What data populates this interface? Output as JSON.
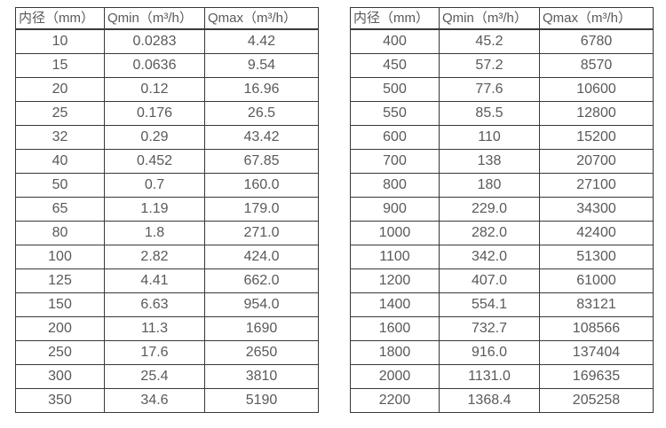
{
  "colors": {
    "background": "#ffffff",
    "border": "#383838",
    "text": "#595959"
  },
  "tables": [
    {
      "name": "flow-table-small-diameters",
      "headers": [
        "内径（mm）",
        "Qmin（m³/h）",
        "Qmax（m³/h）"
      ],
      "rows": [
        [
          "10",
          "0.0283",
          "4.42"
        ],
        [
          "15",
          "0.0636",
          "9.54"
        ],
        [
          "20",
          "0.12",
          "16.96"
        ],
        [
          "25",
          "0.176",
          "26.5"
        ],
        [
          "32",
          "0.29",
          "43.42"
        ],
        [
          "40",
          "0.452",
          "67.85"
        ],
        [
          "50",
          "0.7",
          "160.0"
        ],
        [
          "65",
          "1.19",
          "179.0"
        ],
        [
          "80",
          "1.8",
          "271.0"
        ],
        [
          "100",
          "2.82",
          "424.0"
        ],
        [
          "125",
          "4.41",
          "662.0"
        ],
        [
          "150",
          "6.63",
          "954.0"
        ],
        [
          "200",
          "11.3",
          "1690"
        ],
        [
          "250",
          "17.6",
          "2650"
        ],
        [
          "300",
          "25.4",
          "3810"
        ],
        [
          "350",
          "34.6",
          "5190"
        ]
      ]
    },
    {
      "name": "flow-table-large-diameters",
      "headers": [
        "内径（mm）",
        "Qmin（m³/h）",
        "Qmax（m³/h）"
      ],
      "rows": [
        [
          "400",
          "45.2",
          "6780"
        ],
        [
          "450",
          "57.2",
          "8570"
        ],
        [
          "500",
          "77.6",
          "10600"
        ],
        [
          "550",
          "85.5",
          "12800"
        ],
        [
          "600",
          "110",
          "15200"
        ],
        [
          "700",
          "138",
          "20700"
        ],
        [
          "800",
          "180",
          "27100"
        ],
        [
          "900",
          "229.0",
          "34300"
        ],
        [
          "1000",
          "282.0",
          "42400"
        ],
        [
          "1100",
          "342.0",
          "51300"
        ],
        [
          "1200",
          "407.0",
          "61000"
        ],
        [
          "1400",
          "554.1",
          "83121"
        ],
        [
          "1600",
          "732.7",
          "108566"
        ],
        [
          "1800",
          "916.0",
          "137404"
        ],
        [
          "2000",
          "1131.0",
          "169635"
        ],
        [
          "2200",
          "1368.4",
          "205258"
        ]
      ]
    }
  ]
}
